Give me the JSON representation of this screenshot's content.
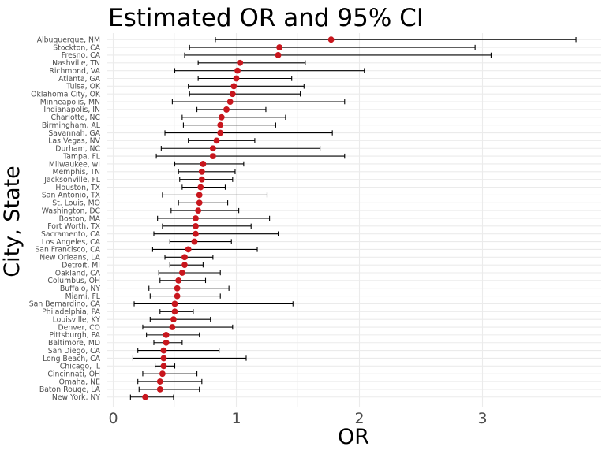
{
  "chart_data": {
    "type": "scatter",
    "subtype": "forest-plot",
    "title": "Estimated OR and 95% CI",
    "xlabel": "OR",
    "ylabel": "City, State",
    "xlim": [
      0,
      3.9
    ],
    "x_ticks": [
      0,
      1,
      2,
      3
    ],
    "x_tick_labels": [
      "0",
      "1",
      "2",
      "3"
    ],
    "grid": true,
    "legend": "none",
    "point_color": "#c8161d",
    "errorbar_color": "#000000",
    "rows": [
      {
        "city": "Albuquerque, NM",
        "or": 1.77,
        "low": 0.83,
        "high": 3.76
      },
      {
        "city": "Stockton, CA",
        "or": 1.35,
        "low": 0.62,
        "high": 2.94
      },
      {
        "city": "Fresno, CA",
        "or": 1.34,
        "low": 0.58,
        "high": 3.07
      },
      {
        "city": "Nashville, TN",
        "or": 1.03,
        "low": 0.69,
        "high": 1.56
      },
      {
        "city": "Richmond, VA",
        "or": 1.01,
        "low": 0.5,
        "high": 2.04
      },
      {
        "city": "Atlanta, GA",
        "or": 1.0,
        "low": 0.69,
        "high": 1.45
      },
      {
        "city": "Tulsa, OK",
        "or": 0.98,
        "low": 0.61,
        "high": 1.55
      },
      {
        "city": "Oklahoma City, OK",
        "or": 0.97,
        "low": 0.62,
        "high": 1.52
      },
      {
        "city": "Minneapolis, MN",
        "or": 0.95,
        "low": 0.48,
        "high": 1.88
      },
      {
        "city": "Indianapolis, IN",
        "or": 0.92,
        "low": 0.68,
        "high": 1.24
      },
      {
        "city": "Charlotte, NC",
        "or": 0.88,
        "low": 0.56,
        "high": 1.4
      },
      {
        "city": "Birmingham, AL",
        "or": 0.87,
        "low": 0.57,
        "high": 1.32
      },
      {
        "city": "Savannah, GA",
        "or": 0.87,
        "low": 0.42,
        "high": 1.78
      },
      {
        "city": "Las Vegas, NV",
        "or": 0.84,
        "low": 0.61,
        "high": 1.15
      },
      {
        "city": "Durham, NC",
        "or": 0.81,
        "low": 0.39,
        "high": 1.68
      },
      {
        "city": "Tampa, FL",
        "or": 0.81,
        "low": 0.35,
        "high": 1.88
      },
      {
        "city": "Milwaukee, wI",
        "or": 0.73,
        "low": 0.5,
        "high": 1.06
      },
      {
        "city": "Memphis, TN",
        "or": 0.72,
        "low": 0.53,
        "high": 0.99
      },
      {
        "city": "Jacksonville, FL",
        "or": 0.72,
        "low": 0.54,
        "high": 0.97
      },
      {
        "city": "Houston, TX",
        "or": 0.71,
        "low": 0.56,
        "high": 0.91
      },
      {
        "city": "San Antonio, TX",
        "or": 0.7,
        "low": 0.4,
        "high": 1.25
      },
      {
        "city": "St. Louis, MO",
        "or": 0.7,
        "low": 0.53,
        "high": 0.93
      },
      {
        "city": "Washington, DC",
        "or": 0.69,
        "low": 0.47,
        "high": 1.02
      },
      {
        "city": "Boston, MA",
        "or": 0.67,
        "low": 0.36,
        "high": 1.27
      },
      {
        "city": "Fort Worth, TX",
        "or": 0.67,
        "low": 0.4,
        "high": 1.12
      },
      {
        "city": "Sacramento, CA",
        "or": 0.67,
        "low": 0.33,
        "high": 1.34
      },
      {
        "city": "Los Angeles, CA",
        "or": 0.66,
        "low": 0.46,
        "high": 0.96
      },
      {
        "city": "San Francisco, CA",
        "or": 0.61,
        "low": 0.32,
        "high": 1.17
      },
      {
        "city": "New Orleans, LA",
        "or": 0.58,
        "low": 0.42,
        "high": 0.81
      },
      {
        "city": "Detroit, MI",
        "or": 0.58,
        "low": 0.46,
        "high": 0.73
      },
      {
        "city": "Oakland, CA",
        "or": 0.56,
        "low": 0.37,
        "high": 0.87
      },
      {
        "city": "Columbus, OH",
        "or": 0.53,
        "low": 0.38,
        "high": 0.75
      },
      {
        "city": "Buffalo, NY",
        "or": 0.52,
        "low": 0.29,
        "high": 0.94
      },
      {
        "city": "Miami, FL",
        "or": 0.52,
        "low": 0.3,
        "high": 0.87
      },
      {
        "city": "San Bernardino, CA",
        "or": 0.5,
        "low": 0.17,
        "high": 1.46
      },
      {
        "city": "Philadelphia, PA",
        "or": 0.5,
        "low": 0.38,
        "high": 0.65
      },
      {
        "city": "Louisville, KY",
        "or": 0.49,
        "low": 0.3,
        "high": 0.79
      },
      {
        "city": "Denver, CO",
        "or": 0.48,
        "low": 0.24,
        "high": 0.97
      },
      {
        "city": "Pittsburgh, PA",
        "or": 0.43,
        "low": 0.27,
        "high": 0.7
      },
      {
        "city": "Baltimore, MD",
        "or": 0.43,
        "low": 0.33,
        "high": 0.56
      },
      {
        "city": "San Diego, CA",
        "or": 0.41,
        "low": 0.2,
        "high": 0.86
      },
      {
        "city": "Long Beach, CA",
        "or": 0.41,
        "low": 0.16,
        "high": 1.08
      },
      {
        "city": "Chicago, IL",
        "or": 0.41,
        "low": 0.34,
        "high": 0.5
      },
      {
        "city": "Cincinnati, OH",
        "or": 0.4,
        "low": 0.24,
        "high": 0.68
      },
      {
        "city": "Omaha, NE",
        "or": 0.38,
        "low": 0.2,
        "high": 0.72
      },
      {
        "city": "Baton Rouge, LA",
        "or": 0.38,
        "low": 0.21,
        "high": 0.7
      },
      {
        "city": "New York, NY",
        "or": 0.26,
        "low": 0.14,
        "high": 0.49
      }
    ]
  }
}
